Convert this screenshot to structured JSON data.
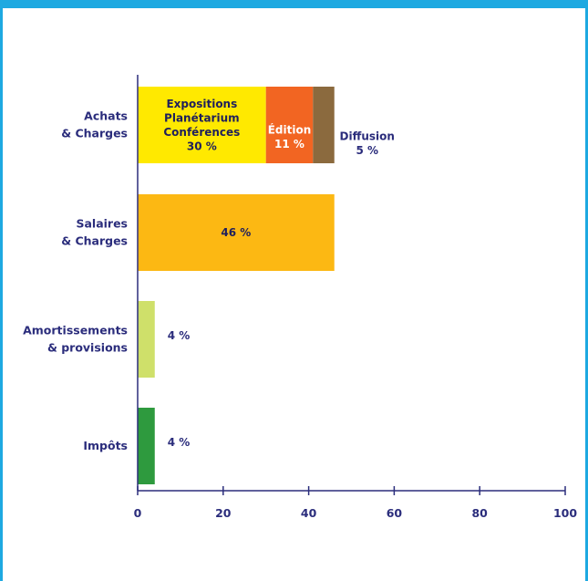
{
  "chart_data": {
    "type": "bar",
    "orientation": "horizontal",
    "stacked": true,
    "categories": [
      [
        "Achats",
        "& Charges"
      ],
      [
        "Salaires",
        "& Charges"
      ],
      [
        "Amortissements",
        "& provisions"
      ],
      [
        "Impôts"
      ]
    ],
    "bars": [
      {
        "segments": [
          {
            "value": 30,
            "color": "#ffe900",
            "label": [
              "Expositions",
              "Planétarium",
              "Conférences",
              "30 %"
            ],
            "label_position": "inside"
          },
          {
            "value": 11,
            "color": "#f26522",
            "label": [
              "Édition",
              "11 %"
            ],
            "label_position": "inside",
            "label_color": "#ffffff"
          },
          {
            "value": 5,
            "color": "#8b6a3e",
            "label": [
              "Diffusion",
              "5 %"
            ],
            "label_position": "outside"
          }
        ]
      },
      {
        "segments": [
          {
            "value": 46,
            "color": "#fcb813",
            "label": [
              "46 %"
            ],
            "label_position": "inside"
          }
        ]
      },
      {
        "segments": [
          {
            "value": 4,
            "color": "#cfe06a",
            "label": [
              "4 %"
            ],
            "label_position": "outside"
          }
        ]
      },
      {
        "segments": [
          {
            "value": 4,
            "color": "#2e9a3e",
            "label": [
              "4 %"
            ],
            "label_position": "outside"
          }
        ]
      }
    ],
    "xlim": [
      0,
      100
    ],
    "xticks": [
      0,
      20,
      40,
      60,
      80,
      100
    ],
    "title": "",
    "xlabel": "",
    "ylabel": "",
    "grid": false,
    "axis_color": "#2b2d7c",
    "frame_color": "#1ea9e1"
  }
}
